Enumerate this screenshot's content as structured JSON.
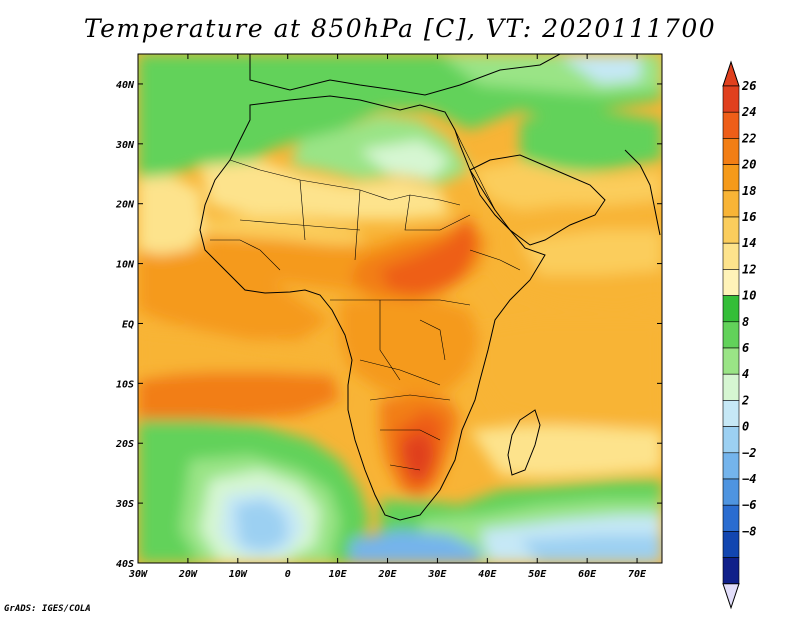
{
  "title": "Temperature at 850hPa [C], VT: 2020111700",
  "credit": "GrADS: IGES/COLA",
  "map": {
    "projection": "latlon",
    "lon_range": [
      -30,
      75
    ],
    "lat_range": [
      -40,
      45
    ],
    "lon_ticks": [
      {
        "value": -30,
        "label": "30W"
      },
      {
        "value": -20,
        "label": "20W"
      },
      {
        "value": -10,
        "label": "10W"
      },
      {
        "value": 0,
        "label": "0"
      },
      {
        "value": 10,
        "label": "10E"
      },
      {
        "value": 20,
        "label": "20E"
      },
      {
        "value": 30,
        "label": "30E"
      },
      {
        "value": 40,
        "label": "40E"
      },
      {
        "value": 50,
        "label": "50E"
      },
      {
        "value": 60,
        "label": "60E"
      },
      {
        "value": 70,
        "label": "70E"
      }
    ],
    "lat_ticks": [
      {
        "value": 40,
        "label": "40N"
      },
      {
        "value": 30,
        "label": "30N"
      },
      {
        "value": 20,
        "label": "20N"
      },
      {
        "value": 10,
        "label": "10N"
      },
      {
        "value": 0,
        "label": "EQ"
      },
      {
        "value": -10,
        "label": "10S"
      },
      {
        "value": -20,
        "label": "20S"
      },
      {
        "value": -30,
        "label": "30S"
      },
      {
        "value": -40,
        "label": "40S"
      }
    ]
  },
  "colorbar": {
    "levels": [
      {
        "label": "26",
        "value": 26
      },
      {
        "label": "24",
        "value": 24
      },
      {
        "label": "22",
        "value": 22
      },
      {
        "label": "20",
        "value": 20
      },
      {
        "label": "18",
        "value": 18
      },
      {
        "label": "16",
        "value": 16
      },
      {
        "label": "14",
        "value": 14
      },
      {
        "label": "12",
        "value": 12
      },
      {
        "label": "10",
        "value": 10
      },
      {
        "label": "8",
        "value": 8
      },
      {
        "label": "6",
        "value": 6
      },
      {
        "label": "4",
        "value": 4
      },
      {
        "label": "2",
        "value": 2
      },
      {
        "label": "0",
        "value": 0
      },
      {
        "label": "−2",
        "value": -2
      },
      {
        "label": "−4",
        "value": -4
      },
      {
        "label": "−6",
        "value": -6
      },
      {
        "label": "−8",
        "value": -8
      }
    ],
    "colors": [
      "#e0401e",
      "#ee5e18",
      "#f27e14",
      "#f59a1a",
      "#f8b436",
      "#fbcd5c",
      "#fde38c",
      "#fff3b8",
      "#34be38",
      "#62d25a",
      "#9ae486",
      "#d6f6d2",
      "#c6e8f6",
      "#9cd0f2",
      "#74b4ec",
      "#4e94e0",
      "#2a6cd0",
      "#1246b0",
      "#10208a"
    ],
    "top_color": "#e0401e",
    "bottom_color": "#e2defa"
  }
}
